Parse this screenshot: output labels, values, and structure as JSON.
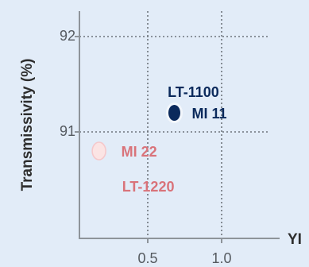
{
  "chart_data": {
    "type": "scatter",
    "xlabel": "YI",
    "ylabel": "Transmissivity (%)",
    "xlim": [
      -0.35,
      1.3
    ],
    "ylim": [
      89.85,
      92.2
    ],
    "x_ticks": [
      {
        "value": 0.5,
        "label": "0.5"
      },
      {
        "value": 1.0,
        "label": "1.0"
      }
    ],
    "y_ticks": [
      {
        "value": 92,
        "label": "92"
      },
      {
        "value": 91,
        "label": "91"
      }
    ],
    "grid": "dotted",
    "points": [
      {
        "x": 0.68,
        "y": 91.2,
        "labels": [
          "LT-1100",
          "MI 11"
        ],
        "color": "#0b2a5c",
        "label_color": "#0b2a5c",
        "style": "filled"
      },
      {
        "x": 0.17,
        "y": 90.8,
        "labels": [
          "MI 22",
          "LT-1220"
        ],
        "color": "#fbe4e4",
        "label_color": "#d9737a",
        "style": "light"
      }
    ]
  }
}
